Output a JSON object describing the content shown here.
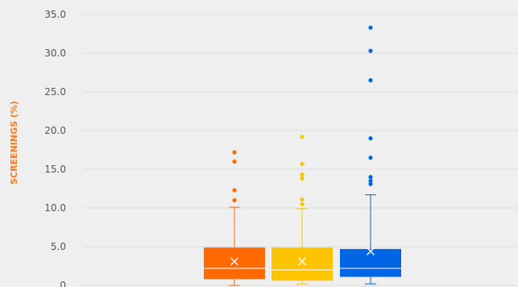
{
  "chart_data": {
    "type": "box",
    "ylabel": "SCREENINGS (%)",
    "ylim": [
      0,
      35
    ],
    "y_ticks": [
      "0",
      "5.0",
      "10.0",
      "15.0",
      "20.0",
      "25.0",
      "30.0",
      "35.0"
    ],
    "y_tick_values": [
      0,
      5,
      10,
      15,
      20,
      25,
      30,
      35
    ],
    "grid": true,
    "colors": {
      "ylabel": "#ff7a1a",
      "grid": "#dedede",
      "tick_text": "#555555"
    },
    "series": [
      {
        "color": "#ff6a00",
        "min": 0,
        "q1": 0.8,
        "median": 2.2,
        "q3": 4.9,
        "max": 10.1,
        "mean": 3.1,
        "outliers": [
          11.0,
          12.3,
          16.0,
          17.2
        ]
      },
      {
        "color": "#ffc400",
        "min": 0.2,
        "q1": 0.6,
        "median": 2.0,
        "q3": 4.9,
        "max": 9.9,
        "mean": 3.1,
        "outliers": [
          10.5,
          11.1,
          13.8,
          14.3,
          15.7,
          19.2
        ]
      },
      {
        "color": "#0066e6",
        "min": 0.2,
        "q1": 1.1,
        "median": 2.2,
        "q3": 4.7,
        "max": 11.7,
        "mean": 4.4,
        "outliers": [
          13.1,
          13.5,
          14.0,
          16.5,
          19.0,
          26.5,
          30.3,
          33.3
        ]
      }
    ]
  }
}
